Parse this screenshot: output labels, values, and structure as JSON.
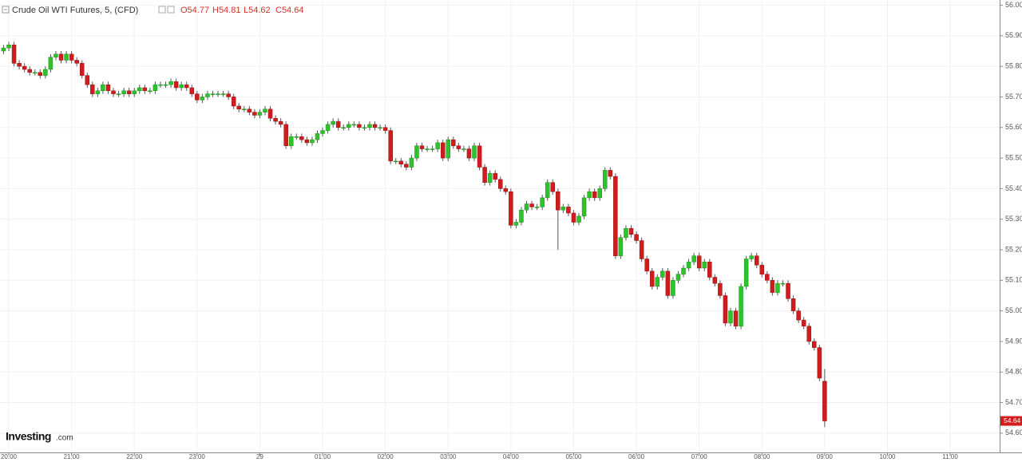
{
  "chart_data": {
    "type": "candlestick",
    "title": "Crude Oil WTI Futures, 5, (CFD)",
    "ohlc_labels": [
      "O54.77",
      "H54.81",
      "L54.62",
      "C54.64"
    ],
    "brand": "Investing",
    "brand_suffix": ".com",
    "up_color": "#2bc42b",
    "down_color": "#d01c1c",
    "grid": true,
    "xlim": [
      -1.68,
      189.45
    ],
    "ylim": [
      54.537,
      56.017
    ],
    "xticks": [
      {
        "value": 0,
        "label": "20:00"
      },
      {
        "value": 12,
        "label": "21:00"
      },
      {
        "value": 24,
        "label": "22:00"
      },
      {
        "value": 36,
        "label": "23:00"
      },
      {
        "value": 48,
        "label": "29"
      },
      {
        "value": 60,
        "label": "01:00"
      },
      {
        "value": 72,
        "label": "02:00"
      },
      {
        "value": 84,
        "label": "03:00"
      },
      {
        "value": 96,
        "label": "04:00"
      },
      {
        "value": 108,
        "label": "05:00"
      },
      {
        "value": 120,
        "label": "06:00"
      },
      {
        "value": 132,
        "label": "07:00"
      },
      {
        "value": 144,
        "label": "08:00"
      },
      {
        "value": 156,
        "label": "09:00"
      },
      {
        "value": 168,
        "label": "10:00"
      },
      {
        "value": 180,
        "label": "11:00"
      }
    ],
    "yticks": [
      {
        "value": 54.6,
        "label": "54.60"
      },
      {
        "value": 54.7,
        "label": "54.70"
      },
      {
        "value": 54.8,
        "label": "54.80"
      },
      {
        "value": 54.9,
        "label": "54.90"
      },
      {
        "value": 55.0,
        "label": "55.00"
      },
      {
        "value": 55.1,
        "label": "55.10"
      },
      {
        "value": 55.2,
        "label": "55.20"
      },
      {
        "value": 55.3,
        "label": "55.30"
      },
      {
        "value": 55.4,
        "label": "55.40"
      },
      {
        "value": 55.5,
        "label": "55.50"
      },
      {
        "value": 55.6,
        "label": "55.60"
      },
      {
        "value": 55.7,
        "label": "55.70"
      },
      {
        "value": 55.8,
        "label": "55.80"
      },
      {
        "value": 55.9,
        "label": "55.90"
      },
      {
        "value": 56.0,
        "label": "56.00"
      }
    ],
    "last_price": {
      "value": 54.64,
      "label": "54.64"
    },
    "x": [
      -1,
      0,
      1,
      2,
      3,
      4,
      5,
      6,
      7,
      8,
      9,
      10,
      11,
      12,
      13,
      14,
      15,
      16,
      17,
      18,
      19,
      20,
      21,
      22,
      23,
      24,
      25,
      26,
      27,
      28,
      29,
      30,
      31,
      32,
      33,
      34,
      35,
      36,
      37,
      38,
      39,
      40,
      41,
      42,
      43,
      44,
      45,
      46,
      47,
      48,
      49,
      50,
      51,
      52,
      53,
      54,
      55,
      56,
      57,
      58,
      59,
      60,
      61,
      62,
      63,
      64,
      65,
      66,
      67,
      68,
      69,
      70,
      71,
      72,
      73,
      74,
      75,
      76,
      77,
      78,
      79,
      80,
      81,
      82,
      83,
      84,
      85,
      86,
      87,
      88,
      89,
      90,
      91,
      92,
      93,
      94,
      95,
      96,
      97,
      98,
      99,
      100,
      101,
      102,
      103,
      104,
      105,
      106,
      107,
      108,
      109,
      110,
      111,
      112,
      113,
      114,
      115,
      116,
      117,
      118,
      119,
      120,
      121,
      122,
      123,
      124,
      125,
      126,
      127,
      128,
      129,
      130,
      131,
      132,
      133,
      134,
      135,
      136,
      137,
      138,
      139,
      140,
      141,
      142,
      143,
      144,
      145,
      146,
      147,
      148,
      149,
      150,
      151,
      152,
      153,
      154,
      155,
      156
    ],
    "open": [
      55.85,
      55.86,
      55.87,
      55.81,
      55.8,
      55.79,
      55.78,
      55.78,
      55.77,
      55.79,
      55.83,
      55.84,
      55.82,
      55.84,
      55.82,
      55.81,
      55.77,
      55.74,
      55.71,
      55.72,
      55.74,
      55.72,
      55.71,
      55.71,
      55.72,
      55.71,
      55.72,
      55.73,
      55.72,
      55.72,
      55.74,
      55.74,
      55.74,
      55.75,
      55.73,
      55.74,
      55.73,
      55.71,
      55.69,
      55.7,
      55.71,
      55.71,
      55.71,
      55.71,
      55.7,
      55.67,
      55.66,
      55.66,
      55.65,
      55.64,
      55.65,
      55.66,
      55.63,
      55.62,
      55.61,
      55.54,
      55.57,
      55.57,
      55.56,
      55.55,
      55.56,
      55.58,
      55.59,
      55.61,
      55.62,
      55.6,
      55.6,
      55.61,
      55.61,
      55.6,
      55.6,
      55.61,
      55.6,
      55.6,
      55.59,
      55.49,
      55.49,
      55.48,
      55.47,
      55.5,
      55.54,
      55.53,
      55.53,
      55.53,
      55.55,
      55.5,
      55.56,
      55.54,
      55.53,
      55.53,
      55.5,
      55.54,
      55.47,
      55.42,
      55.45,
      55.43,
      55.4,
      55.39,
      55.28,
      55.29,
      55.33,
      55.35,
      55.34,
      55.34,
      55.37,
      55.42,
      55.39,
      55.33,
      55.34,
      55.32,
      55.29,
      55.31,
      55.37,
      55.39,
      55.37,
      55.4,
      55.46,
      55.44,
      55.18,
      55.24,
      55.27,
      55.25,
      55.23,
      55.17,
      55.13,
      55.08,
      55.11,
      55.13,
      55.05,
      55.1,
      55.12,
      55.14,
      55.16,
      55.18,
      55.14,
      55.16,
      55.11,
      55.09,
      55.05,
      54.96,
      55.0,
      54.95,
      55.08,
      55.17,
      55.18,
      55.15,
      55.12,
      55.1,
      55.06,
      55.09,
      55.09,
      55.04,
      55.0,
      54.97,
      54.95,
      54.9,
      54.88,
      54.77
    ],
    "high": [
      55.87,
      55.88,
      55.88,
      55.82,
      55.81,
      55.8,
      55.79,
      55.79,
      55.8,
      55.84,
      55.85,
      55.85,
      55.85,
      55.85,
      55.83,
      55.82,
      55.78,
      55.75,
      55.73,
      55.75,
      55.75,
      55.73,
      55.72,
      55.73,
      55.73,
      55.73,
      55.74,
      55.74,
      55.73,
      55.75,
      55.75,
      55.75,
      55.76,
      55.76,
      55.75,
      55.75,
      55.74,
      55.72,
      55.71,
      55.72,
      55.72,
      55.72,
      55.72,
      55.72,
      55.71,
      55.68,
      55.67,
      55.67,
      55.66,
      55.66,
      55.67,
      55.67,
      55.64,
      55.63,
      55.62,
      55.58,
      55.58,
      55.58,
      55.57,
      55.57,
      55.59,
      55.6,
      55.62,
      55.63,
      55.63,
      55.61,
      55.62,
      55.62,
      55.62,
      55.61,
      55.62,
      55.62,
      55.61,
      55.61,
      55.6,
      55.5,
      55.5,
      55.49,
      55.51,
      55.55,
      55.55,
      55.54,
      55.54,
      55.56,
      55.56,
      55.57,
      55.57,
      55.55,
      55.54,
      55.54,
      55.55,
      55.55,
      55.48,
      55.46,
      55.46,
      55.44,
      55.41,
      55.4,
      55.3,
      55.34,
      55.36,
      55.36,
      55.35,
      55.38,
      55.43,
      55.43,
      55.4,
      55.35,
      55.35,
      55.33,
      55.32,
      55.38,
      55.4,
      55.4,
      55.41,
      55.47,
      55.47,
      55.45,
      55.25,
      55.28,
      55.28,
      55.26,
      55.24,
      55.18,
      55.14,
      55.12,
      55.14,
      55.14,
      55.11,
      55.13,
      55.15,
      55.17,
      55.19,
      55.19,
      55.17,
      55.17,
      55.12,
      55.1,
      55.06,
      55.01,
      55.01,
      55.09,
      55.18,
      55.19,
      55.19,
      55.16,
      55.13,
      55.11,
      55.1,
      55.1,
      55.1,
      55.05,
      55.01,
      54.98,
      54.96,
      54.91,
      54.89,
      54.81
    ],
    "low": [
      55.84,
      55.85,
      55.8,
      55.79,
      55.78,
      55.77,
      55.77,
      55.76,
      55.76,
      55.78,
      55.82,
      55.81,
      55.81,
      55.81,
      55.8,
      55.76,
      55.73,
      55.7,
      55.7,
      55.71,
      55.71,
      55.7,
      55.7,
      55.7,
      55.7,
      55.7,
      55.71,
      55.71,
      55.71,
      55.71,
      55.73,
      55.73,
      55.73,
      55.72,
      55.72,
      55.72,
      55.7,
      55.68,
      55.68,
      55.69,
      55.7,
      55.7,
      55.7,
      55.69,
      55.66,
      55.65,
      55.65,
      55.64,
      55.63,
      55.63,
      55.64,
      55.62,
      55.61,
      55.6,
      55.53,
      55.53,
      55.56,
      55.55,
      55.54,
      55.54,
      55.55,
      55.57,
      55.58,
      55.6,
      55.59,
      55.59,
      55.59,
      55.6,
      55.59,
      55.59,
      55.59,
      55.59,
      55.59,
      55.58,
      55.48,
      55.48,
      55.47,
      55.46,
      55.46,
      55.49,
      55.52,
      55.52,
      55.52,
      55.52,
      55.49,
      55.49,
      55.53,
      55.52,
      55.52,
      55.49,
      55.49,
      55.46,
      55.41,
      55.41,
      55.42,
      55.39,
      55.38,
      55.27,
      55.27,
      55.28,
      55.32,
      55.33,
      55.33,
      55.33,
      55.36,
      55.38,
      55.2,
      55.32,
      55.31,
      55.28,
      55.28,
      55.3,
      55.36,
      55.36,
      55.36,
      55.39,
      55.43,
      55.17,
      55.17,
      55.23,
      55.24,
      55.22,
      55.16,
      55.12,
      55.07,
      55.07,
      55.1,
      55.04,
      55.04,
      55.09,
      55.11,
      55.13,
      55.15,
      55.13,
      55.13,
      55.1,
      55.08,
      55.04,
      54.95,
      54.95,
      54.94,
      54.94,
      55.07,
      55.16,
      55.14,
      55.11,
      55.09,
      55.05,
      55.05,
      55.08,
      55.03,
      54.99,
      54.96,
      54.94,
      54.89,
      54.87,
      54.77,
      54.62
    ],
    "close": [
      55.86,
      55.87,
      55.81,
      55.8,
      55.79,
      55.78,
      55.78,
      55.77,
      55.79,
      55.83,
      55.84,
      55.82,
      55.84,
      55.82,
      55.81,
      55.77,
      55.74,
      55.71,
      55.72,
      55.74,
      55.72,
      55.71,
      55.71,
      55.72,
      55.71,
      55.72,
      55.73,
      55.72,
      55.72,
      55.74,
      55.74,
      55.74,
      55.75,
      55.73,
      55.74,
      55.73,
      55.71,
      55.69,
      55.7,
      55.71,
      55.71,
      55.71,
      55.71,
      55.7,
      55.67,
      55.66,
      55.66,
      55.65,
      55.64,
      55.65,
      55.66,
      55.63,
      55.62,
      55.61,
      55.54,
      55.57,
      55.57,
      55.56,
      55.55,
      55.56,
      55.58,
      55.59,
      55.61,
      55.62,
      55.6,
      55.6,
      55.61,
      55.61,
      55.6,
      55.6,
      55.61,
      55.6,
      55.6,
      55.59,
      55.49,
      55.49,
      55.48,
      55.47,
      55.5,
      55.54,
      55.53,
      55.53,
      55.53,
      55.55,
      55.5,
      55.56,
      55.54,
      55.53,
      55.53,
      55.5,
      55.54,
      55.47,
      55.42,
      55.45,
      55.43,
      55.4,
      55.39,
      55.28,
      55.29,
      55.33,
      55.35,
      55.34,
      55.34,
      55.37,
      55.42,
      55.39,
      55.33,
      55.34,
      55.32,
      55.29,
      55.31,
      55.37,
      55.39,
      55.37,
      55.4,
      55.46,
      55.44,
      55.18,
      55.24,
      55.27,
      55.25,
      55.23,
      55.17,
      55.13,
      55.08,
      55.11,
      55.13,
      55.05,
      55.1,
      55.12,
      55.14,
      55.16,
      55.18,
      55.14,
      55.16,
      55.11,
      55.09,
      55.05,
      54.96,
      55.0,
      54.95,
      55.08,
      55.17,
      55.18,
      55.15,
      55.12,
      55.1,
      55.06,
      55.09,
      55.09,
      55.04,
      55.0,
      54.97,
      54.95,
      54.9,
      54.88,
      54.78,
      54.64
    ]
  }
}
